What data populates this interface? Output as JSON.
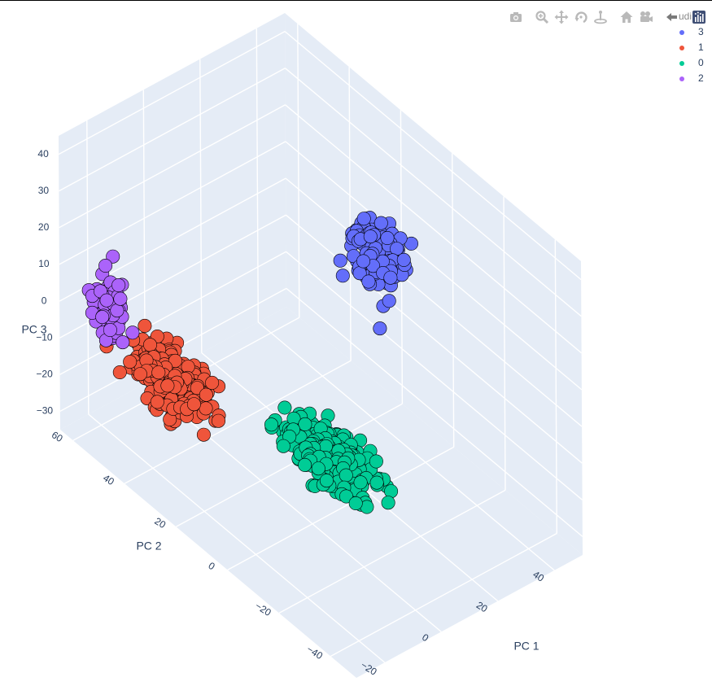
{
  "modebar": {
    "buttons": [
      {
        "name": "camera-icon",
        "title": "Download plot as a png"
      },
      {
        "name": "zoom-icon",
        "title": "Zoom"
      },
      {
        "name": "pan-icon",
        "title": "Pan"
      },
      {
        "name": "orbit-rotation-icon",
        "title": "Orbital rotation"
      },
      {
        "name": "turntable-rotation-icon",
        "title": "Turntable rotation"
      },
      {
        "name": "home-icon",
        "title": "Reset camera to default"
      },
      {
        "name": "camera-view-icon",
        "title": "Reset camera to last save"
      },
      {
        "name": "plotly-logo-icon",
        "title": "Produced with Plotly"
      }
    ]
  },
  "legend": {
    "title": "udi",
    "items": [
      {
        "label": "3",
        "color": "#636efa"
      },
      {
        "label": "1",
        "color": "#ef553b"
      },
      {
        "label": "0",
        "color": "#00cc96"
      },
      {
        "label": "2",
        "color": "#ab63fa"
      }
    ]
  },
  "chart_data": {
    "type": "scatter3d",
    "title": "",
    "xlabel": "PC 1",
    "ylabel": "PC 2",
    "zlabel": "PC 3",
    "xticks": [
      "−20",
      "0",
      "20",
      "40"
    ],
    "yticks": [
      "−40",
      "−20",
      "0",
      "20",
      "40",
      "60"
    ],
    "zticks": [
      "−30",
      "−20",
      "−10",
      "0",
      "10",
      "20",
      "30",
      "40"
    ],
    "xlim": [
      -30,
      50
    ],
    "ylim": [
      -50,
      65
    ],
    "zlim": [
      -35,
      45
    ],
    "marker_edge": "#000000",
    "series": [
      {
        "name": "3",
        "color": "#636efa",
        "center": [
          36,
          14,
          15
        ],
        "spread": [
          6,
          8,
          6
        ],
        "count": 170
      },
      {
        "name": "1",
        "color": "#ef553b",
        "center": [
          -15,
          38,
          -12
        ],
        "spread": [
          6,
          12,
          4
        ],
        "count": 320
      },
      {
        "name": "0",
        "color": "#00cc96",
        "center": [
          12,
          6,
          -25
        ],
        "spread": [
          7,
          14,
          4
        ],
        "count": 300
      },
      {
        "name": "2",
        "color": "#ab63fa",
        "center": [
          -24,
          52,
          4
        ],
        "spread": [
          3,
          5,
          6
        ],
        "count": 90
      }
    ]
  }
}
